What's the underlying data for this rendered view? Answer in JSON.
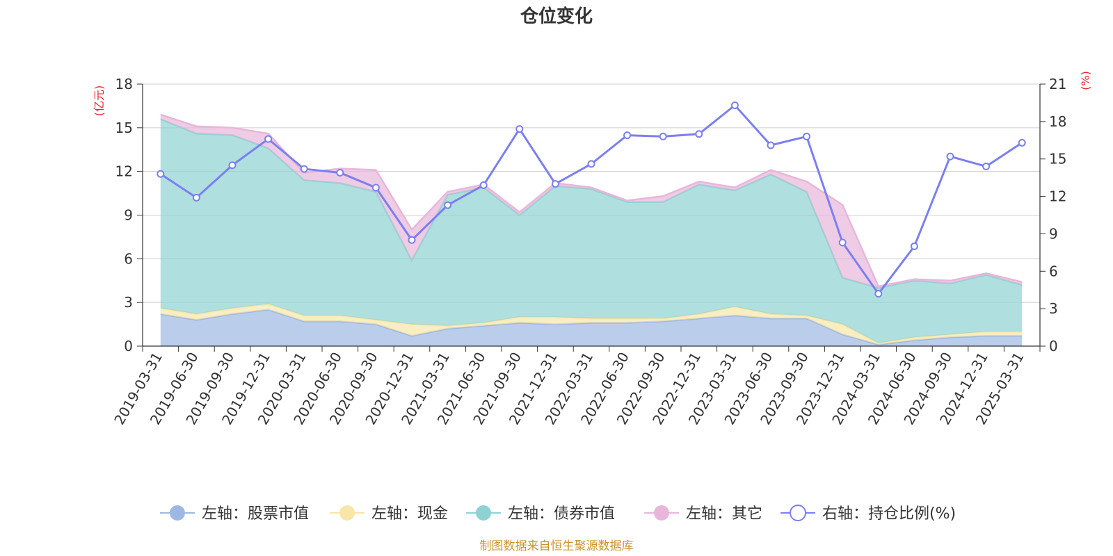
{
  "title": "仓位变化",
  "source_note": "制图数据来自恒生聚源数据库",
  "colors": {
    "stock": "#9db8e3",
    "cash": "#f7e6a8",
    "bond": "#8fd2d2",
    "other": "#e8b6da",
    "ratio": "#7b7ff0",
    "unit": "#e8262b",
    "source": "#c9942c"
  },
  "chart_data": {
    "type": "area",
    "title": "仓位变化",
    "x": [
      "2019-03-31",
      "2019-06-30",
      "2019-09-30",
      "2019-12-31",
      "2020-03-31",
      "2020-06-30",
      "2020-09-30",
      "2020-12-31",
      "2021-03-31",
      "2021-06-30",
      "2021-09-30",
      "2021-12-31",
      "2022-03-31",
      "2022-06-30",
      "2022-09-30",
      "2022-12-31",
      "2023-03-31",
      "2023-06-30",
      "2023-09-30",
      "2023-12-31",
      "2024-03-31",
      "2024-06-30",
      "2024-09-30",
      "2024-12-31",
      "2025-03-31"
    ],
    "left_axis": {
      "unit": "(亿元)",
      "ylim": [
        0,
        18
      ],
      "ticks": [
        "0",
        "3",
        "6",
        "9",
        "12",
        "15",
        "18"
      ]
    },
    "right_axis": {
      "unit": "(%)",
      "ylim": [
        0,
        21
      ],
      "ticks": [
        "0",
        "3",
        "6",
        "9",
        "12",
        "15",
        "18",
        "21"
      ]
    },
    "grid": true,
    "legend_position": "bottom",
    "stacked": true,
    "series": [
      {
        "name": "左轴：股票市值",
        "axis": "left",
        "type": "area",
        "color_key": "stock",
        "values": [
          2.2,
          1.8,
          2.2,
          2.5,
          1.7,
          1.7,
          1.5,
          0.7,
          1.2,
          1.4,
          1.6,
          1.5,
          1.6,
          1.6,
          1.7,
          1.9,
          2.1,
          1.9,
          1.9,
          0.8,
          0.1,
          0.4,
          0.6,
          0.7,
          0.7
        ]
      },
      {
        "name": "左轴：现金",
        "axis": "left",
        "type": "area",
        "color_key": "cash",
        "values": [
          0.4,
          0.4,
          0.4,
          0.4,
          0.4,
          0.4,
          0.3,
          0.8,
          0.2,
          0.2,
          0.4,
          0.5,
          0.3,
          0.3,
          0.2,
          0.3,
          0.6,
          0.3,
          0.2,
          0.7,
          0.1,
          0.2,
          0.2,
          0.3,
          0.3
        ]
      },
      {
        "name": "左轴：债券市值",
        "axis": "left",
        "type": "area",
        "color_key": "bond",
        "values": [
          13.0,
          12.4,
          11.9,
          10.7,
          9.3,
          9.1,
          8.8,
          4.4,
          9.0,
          9.3,
          7.0,
          9.0,
          8.9,
          8.0,
          8.0,
          8.9,
          8.0,
          9.6,
          8.5,
          3.2,
          3.8,
          3.9,
          3.5,
          3.9,
          3.2
        ]
      },
      {
        "name": "左轴：其它",
        "axis": "left",
        "type": "area",
        "color_key": "other",
        "values": [
          0.3,
          0.5,
          0.5,
          1.0,
          0.5,
          1.0,
          1.5,
          2.1,
          0.2,
          0.2,
          0.2,
          0.2,
          0.1,
          0.1,
          0.4,
          0.2,
          0.2,
          0.3,
          0.7,
          5.0,
          0.1,
          0.1,
          0.2,
          0.1,
          0.2
        ]
      },
      {
        "name": "右轴：持仓比例(%)",
        "axis": "right",
        "type": "line",
        "color_key": "ratio",
        "values": [
          13.8,
          11.9,
          14.5,
          16.6,
          14.2,
          13.9,
          12.7,
          8.5,
          11.3,
          12.9,
          17.4,
          13.0,
          14.6,
          16.9,
          16.8,
          17.0,
          19.3,
          16.1,
          16.8,
          8.3,
          4.2,
          8.0,
          15.2,
          14.4,
          16.3
        ]
      }
    ]
  }
}
